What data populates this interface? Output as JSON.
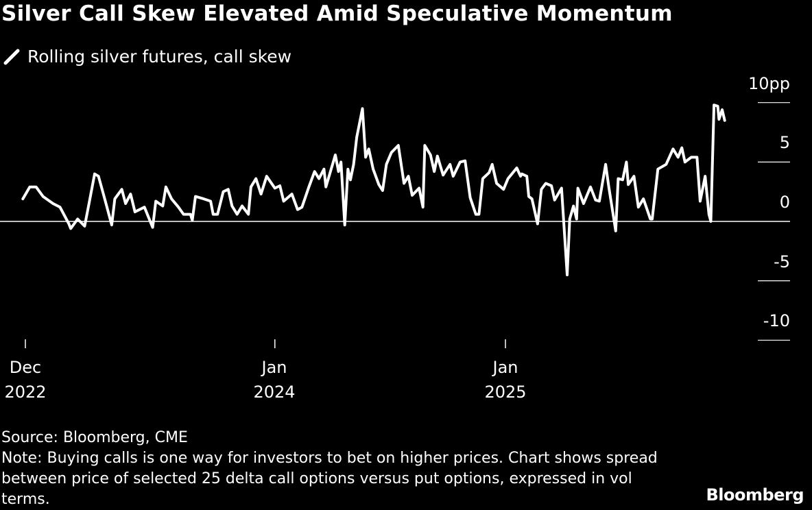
{
  "title": "Silver Call Skew Elevated Amid Speculative Momentum",
  "legend": {
    "icon": "pencil-slash-icon",
    "label": "Rolling silver futures, call skew"
  },
  "footer": {
    "source": "Source: Bloomberg, CME",
    "note": "Note: Buying calls is one way for investors to bet on higher prices. Chart shows spread between price of selected 25 delta call options versus put options, expressed in vol terms."
  },
  "logo": "Bloomberg",
  "colors": {
    "background": "#000000",
    "line": "#ffffff"
  },
  "chart_data": {
    "type": "line",
    "title": "Silver Call Skew Elevated Amid Speculative Momentum",
    "ylabel": "",
    "xlabel": "",
    "y_unit": "pp",
    "ylim": [
      -10,
      10
    ],
    "yticks": [
      {
        "value": 10,
        "label": "10pp"
      },
      {
        "value": 5,
        "label": "5"
      },
      {
        "value": 0,
        "label": "0"
      },
      {
        "value": -5,
        "label": "-5"
      },
      {
        "value": -10,
        "label": "-10"
      }
    ],
    "xticks": [
      {
        "date": "2022-12-01",
        "line1": "Dec",
        "line2": "2022"
      },
      {
        "date": "2024-01-01",
        "line1": "Jan",
        "line2": "2024"
      },
      {
        "date": "2025-01-01",
        "line1": "Jan",
        "line2": "2025"
      }
    ],
    "grid": false,
    "zero_line": true,
    "series": [
      {
        "name": "Rolling silver futures, call skew",
        "points": [
          [
            "2022-11-27",
            1.9
          ],
          [
            "2022-12-08",
            2.9
          ],
          [
            "2022-12-18",
            2.9
          ],
          [
            "2022-12-29",
            2.1
          ],
          [
            "2023-01-14",
            1.5
          ],
          [
            "2023-01-25",
            1.2
          ],
          [
            "2023-02-08",
            -0.2
          ],
          [
            "2023-02-11",
            -0.6
          ],
          [
            "2023-02-22",
            0.2
          ],
          [
            "2023-03-05",
            -0.4
          ],
          [
            "2023-03-12",
            1.5
          ],
          [
            "2023-03-21",
            4.0
          ],
          [
            "2023-03-27",
            3.8
          ],
          [
            "2023-04-06",
            1.9
          ],
          [
            "2023-04-17",
            -0.3
          ],
          [
            "2023-04-22",
            1.9
          ],
          [
            "2023-05-03",
            2.7
          ],
          [
            "2023-05-09",
            1.5
          ],
          [
            "2023-05-17",
            2.3
          ],
          [
            "2023-05-24",
            0.8
          ],
          [
            "2023-06-08",
            1.2
          ],
          [
            "2023-06-21",
            -0.5
          ],
          [
            "2023-06-26",
            1.7
          ],
          [
            "2023-07-07",
            1.3
          ],
          [
            "2023-07-12",
            2.9
          ],
          [
            "2023-07-21",
            1.9
          ],
          [
            "2023-08-01",
            1.2
          ],
          [
            "2023-08-09",
            0.6
          ],
          [
            "2023-08-20",
            0.6
          ],
          [
            "2023-08-23",
            0.1
          ],
          [
            "2023-08-28",
            2.1
          ],
          [
            "2023-09-10",
            1.9
          ],
          [
            "2023-09-21",
            1.7
          ],
          [
            "2023-09-25",
            0.6
          ],
          [
            "2023-10-02",
            0.6
          ],
          [
            "2023-10-11",
            2.5
          ],
          [
            "2023-10-19",
            2.7
          ],
          [
            "2023-10-25",
            1.3
          ],
          [
            "2023-11-02",
            0.6
          ],
          [
            "2023-11-10",
            1.3
          ],
          [
            "2023-11-20",
            0.6
          ],
          [
            "2023-11-24",
            2.9
          ],
          [
            "2023-12-02",
            3.6
          ],
          [
            "2023-12-10",
            2.3
          ],
          [
            "2023-12-19",
            3.8
          ],
          [
            "2024-01-01",
            2.8
          ],
          [
            "2024-01-09",
            3.0
          ],
          [
            "2024-01-15",
            1.7
          ],
          [
            "2024-01-28",
            2.3
          ],
          [
            "2024-02-06",
            1.0
          ],
          [
            "2024-02-13",
            1.2
          ],
          [
            "2024-02-24",
            2.9
          ],
          [
            "2024-03-04",
            4.2
          ],
          [
            "2024-03-11",
            3.6
          ],
          [
            "2024-03-19",
            4.4
          ],
          [
            "2024-03-22",
            2.9
          ],
          [
            "2024-04-06",
            5.6
          ],
          [
            "2024-04-11",
            4.2
          ],
          [
            "2024-04-15",
            5.0
          ],
          [
            "2024-04-21",
            -0.3
          ],
          [
            "2024-04-26",
            4.4
          ],
          [
            "2024-04-30",
            3.5
          ],
          [
            "2024-05-05",
            4.8
          ],
          [
            "2024-05-10",
            7.1
          ],
          [
            "2024-05-19",
            9.5
          ],
          [
            "2024-05-24",
            5.4
          ],
          [
            "2024-05-29",
            6.1
          ],
          [
            "2024-06-05",
            4.4
          ],
          [
            "2024-06-14",
            3.1
          ],
          [
            "2024-06-20",
            2.6
          ],
          [
            "2024-06-26",
            4.8
          ],
          [
            "2024-07-04",
            5.8
          ],
          [
            "2024-07-15",
            6.4
          ],
          [
            "2024-07-24",
            3.2
          ],
          [
            "2024-07-31",
            3.8
          ],
          [
            "2024-08-06",
            2.2
          ],
          [
            "2024-08-17",
            2.8
          ],
          [
            "2024-08-23",
            1.2
          ],
          [
            "2024-08-26",
            6.4
          ],
          [
            "2024-09-04",
            5.6
          ],
          [
            "2024-09-10",
            4.2
          ],
          [
            "2024-09-15",
            5.5
          ],
          [
            "2024-09-24",
            3.9
          ],
          [
            "2024-10-05",
            4.8
          ],
          [
            "2024-10-10",
            3.8
          ],
          [
            "2024-10-21",
            5.0
          ],
          [
            "2024-10-29",
            5.1
          ],
          [
            "2024-11-06",
            2.0
          ],
          [
            "2024-11-15",
            0.6
          ],
          [
            "2024-11-20",
            0.6
          ],
          [
            "2024-11-26",
            3.6
          ],
          [
            "2024-12-06",
            4.1
          ],
          [
            "2024-12-11",
            4.8
          ],
          [
            "2024-12-18",
            3.2
          ],
          [
            "2024-12-29",
            2.7
          ],
          [
            "2025-01-05",
            3.6
          ],
          [
            "2025-01-19",
            4.5
          ],
          [
            "2025-01-25",
            3.8
          ],
          [
            "2025-01-27",
            4.0
          ],
          [
            "2025-02-04",
            3.8
          ],
          [
            "2025-02-07",
            2.1
          ],
          [
            "2025-02-12",
            1.9
          ],
          [
            "2025-02-21",
            -0.2
          ],
          [
            "2025-02-27",
            2.7
          ],
          [
            "2025-03-06",
            3.2
          ],
          [
            "2025-03-15",
            3.0
          ],
          [
            "2025-03-20",
            1.8
          ],
          [
            "2025-03-31",
            2.8
          ],
          [
            "2025-04-09",
            -4.5
          ],
          [
            "2025-04-13",
            0.2
          ],
          [
            "2025-04-19",
            1.3
          ],
          [
            "2025-04-24",
            0.2
          ],
          [
            "2025-04-26",
            2.8
          ],
          [
            "2025-05-05",
            1.5
          ],
          [
            "2025-05-16",
            2.9
          ],
          [
            "2025-05-24",
            1.8
          ],
          [
            "2025-05-30",
            1.7
          ],
          [
            "2025-06-09",
            4.8
          ],
          [
            "2025-06-14",
            2.9
          ],
          [
            "2025-06-25",
            -0.8
          ],
          [
            "2025-06-29",
            3.6
          ],
          [
            "2025-07-06",
            3.5
          ],
          [
            "2025-07-12",
            5.0
          ],
          [
            "2025-07-15",
            3.1
          ],
          [
            "2025-07-24",
            3.8
          ],
          [
            "2025-07-31",
            1.2
          ],
          [
            "2025-08-08",
            1.9
          ],
          [
            "2025-08-19",
            0.2
          ],
          [
            "2025-08-22",
            0.2
          ],
          [
            "2025-08-31",
            4.4
          ],
          [
            "2025-09-13",
            4.8
          ],
          [
            "2025-09-24",
            6.1
          ],
          [
            "2025-10-02",
            5.4
          ],
          [
            "2025-10-08",
            6.2
          ],
          [
            "2025-10-13",
            5.0
          ],
          [
            "2025-10-23",
            5.4
          ],
          [
            "2025-11-01",
            5.4
          ],
          [
            "2025-11-06",
            1.7
          ],
          [
            "2025-11-14",
            3.8
          ],
          [
            "2025-11-20",
            0.6
          ],
          [
            "2025-11-23",
            0.0
          ],
          [
            "2025-11-28",
            9.8
          ],
          [
            "2025-12-04",
            9.7
          ],
          [
            "2025-12-06",
            8.6
          ],
          [
            "2025-12-11",
            9.4
          ],
          [
            "2025-12-15",
            8.5
          ]
        ]
      }
    ]
  }
}
